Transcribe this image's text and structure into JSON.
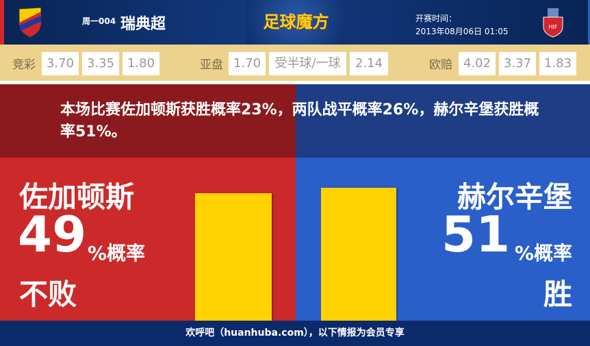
{
  "header": {
    "match_code": "周一004",
    "league": "瑞典超",
    "brand": "足球魔方",
    "kickoff_label": "开赛时间：",
    "kickoff_time": "2013年08月06日 01:05",
    "home_crest": "D.I.F.",
    "away_crest": "HIF"
  },
  "odds": {
    "jingcai": {
      "label": "竞彩",
      "values": [
        "3.70",
        "3.35",
        "1.80"
      ]
    },
    "asian": {
      "label": "亚盘",
      "values": [
        "1.70",
        "受半球/一球",
        "2.14"
      ]
    },
    "euro": {
      "label": "欧赔",
      "values": [
        "4.02",
        "3.37",
        "1.83"
      ]
    }
  },
  "message": "本场比赛佐加顿斯获胜概率23%，两队战平概率26%，赫尔辛堡获胜概率51%。",
  "home": {
    "name": "佐加顿斯",
    "percent": "49",
    "percent_suffix": "%概率",
    "outcome": "不败",
    "bar_value": 49
  },
  "away": {
    "name": "赫尔辛堡",
    "percent": "51",
    "percent_suffix": "%概率",
    "outcome": "胜",
    "bar_value": 51
  },
  "colors": {
    "home": "#cc2a2a",
    "away": "#2a5fc9",
    "bar": "#ffd200"
  },
  "footer": "欢呼吧（huanhuba.com），以下情报为会员专享"
}
